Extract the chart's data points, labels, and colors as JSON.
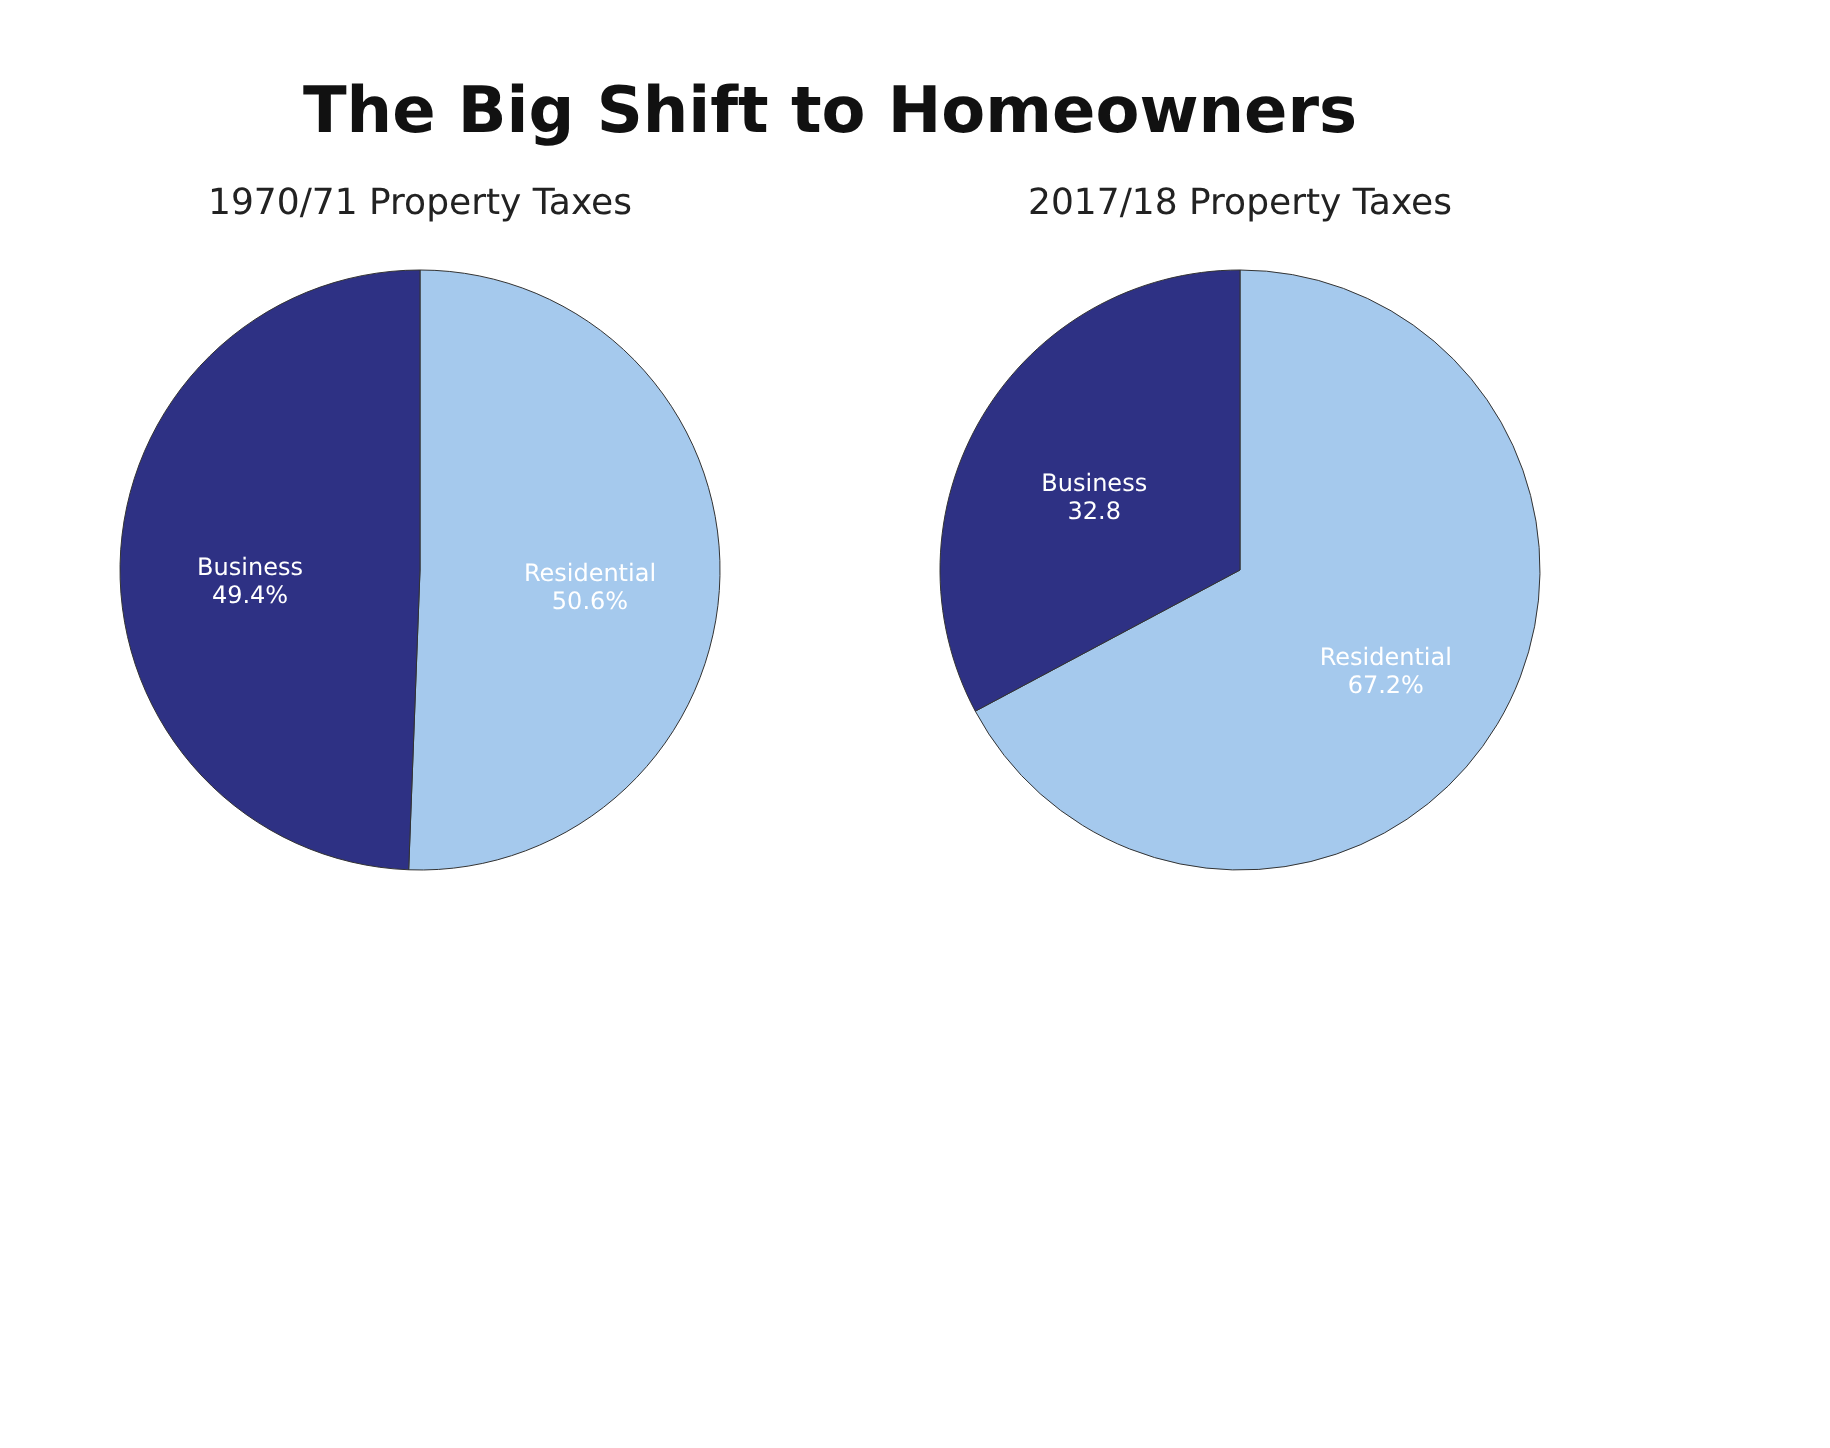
{
  "chart_data": [
    {
      "type": "pie",
      "title": "1970/71 Property Taxes",
      "annotations": [
        "The Big Shift to Homeowners"
      ],
      "categories": [
        "Residential",
        "Business"
      ],
      "values": [
        50.6,
        49.4
      ],
      "value_labels": [
        "50.6%",
        "49.4%"
      ],
      "colors": [
        "#a5c9ed",
        "#2e3184"
      ],
      "legend": false
    },
    {
      "type": "pie",
      "title": "2017/18 Property Taxes",
      "categories": [
        "Residential",
        "Business"
      ],
      "values": [
        67.2,
        32.8
      ],
      "value_labels": [
        "67.2%",
        "32.8"
      ],
      "colors": [
        "#a5c9ed",
        "#2e3184"
      ],
      "legend": false
    }
  ]
}
